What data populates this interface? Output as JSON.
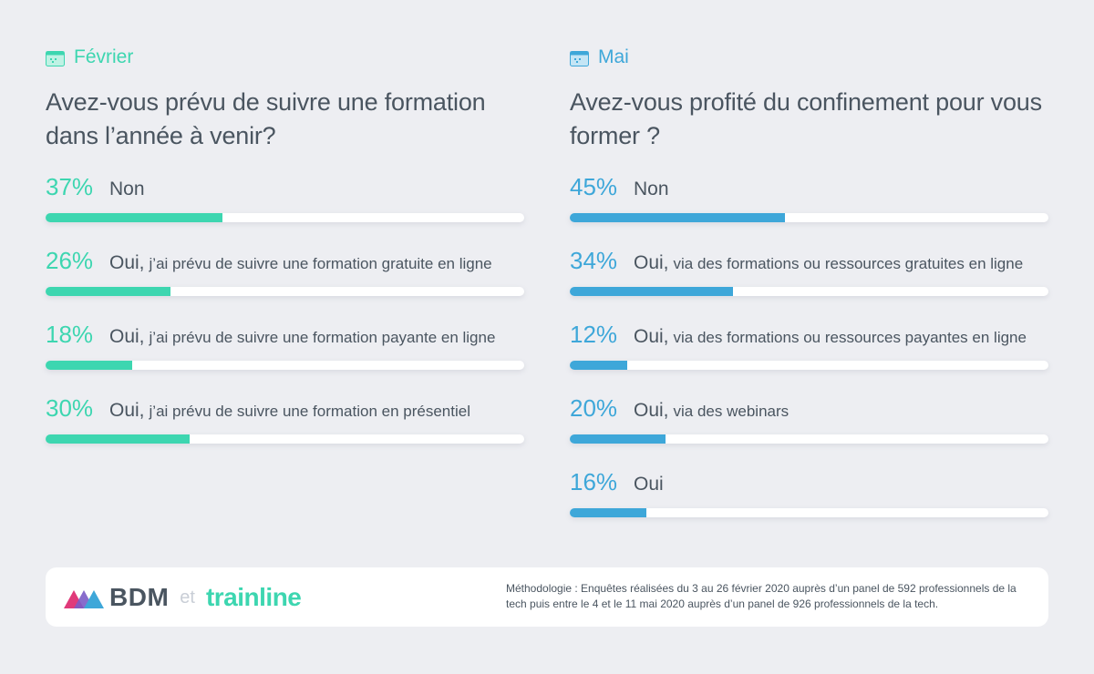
{
  "colors": {
    "green": "#3dd6b0",
    "blue": "#3ea7d9",
    "text": "#4a5560",
    "track": "#ffffff"
  },
  "chart_data": [
    {
      "type": "bar",
      "month": "Février",
      "title": "Avez-vous prévu de suivre une formation dans l’année à venir?",
      "unit": "%",
      "ylim": [
        0,
        100
      ],
      "categories": [
        {
          "main": "Non",
          "rest": ""
        },
        {
          "main": "Oui,",
          "rest": "j’ai prévu de suivre une formation gratuite en ligne"
        },
        {
          "main": "Oui,",
          "rest": "j’ai prévu de suivre une formation payante en ligne"
        },
        {
          "main": "Oui,",
          "rest": "j’ai prévu de suivre une formation en présentiel"
        }
      ],
      "values": [
        37,
        26,
        18,
        30
      ],
      "labels": [
        "37%",
        "26%",
        "18%",
        "30%"
      ]
    },
    {
      "type": "bar",
      "month": "Mai",
      "title": "Avez-vous profité du confinement pour vous former ?",
      "unit": "%",
      "ylim": [
        0,
        100
      ],
      "categories": [
        {
          "main": "Non",
          "rest": ""
        },
        {
          "main": "Oui,",
          "rest": "via des formations ou ressources gratuites en ligne"
        },
        {
          "main": "Oui,",
          "rest": "via des formations ou ressources payantes en ligne"
        },
        {
          "main": "Oui,",
          "rest": "via des webinars"
        },
        {
          "main": "Oui",
          "rest": ""
        }
      ],
      "values": [
        45,
        34,
        12,
        20,
        16
      ],
      "labels": [
        "45%",
        "34%",
        "12%",
        "20%",
        "16%"
      ]
    }
  ],
  "footer": {
    "brand1": "BDM",
    "connector": "et",
    "brand2": "trainline",
    "methodology": "Méthodologie : Enquêtes réalisées du 3 au 26 février 2020 auprès d’un panel de 592 professionnels de la tech puis entre le 4 et le 11 mai 2020 auprès d’un panel de 926 professionnels de la tech."
  }
}
